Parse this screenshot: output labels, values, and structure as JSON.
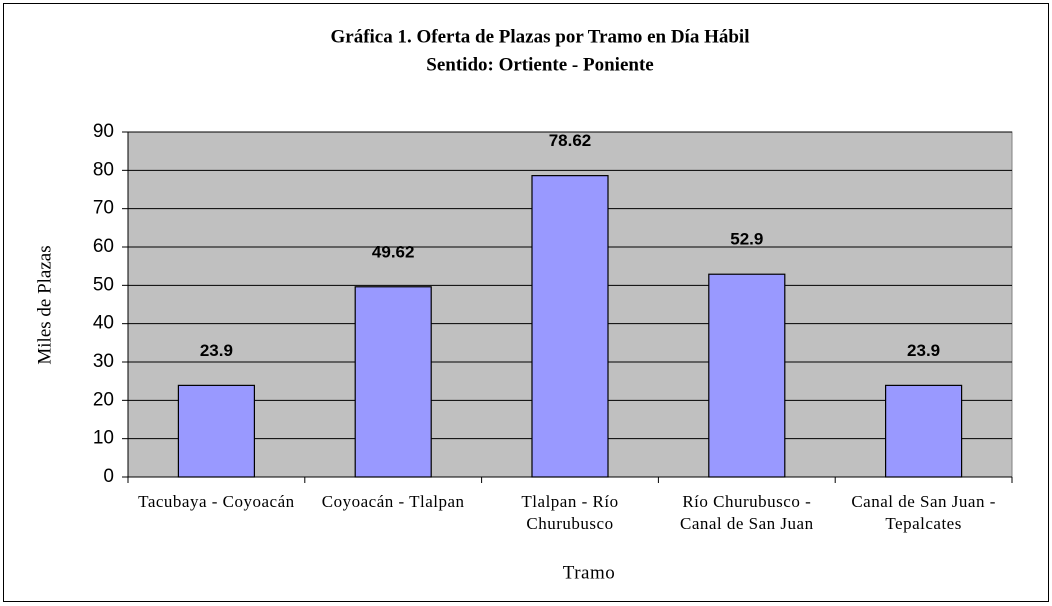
{
  "chart_data": {
    "type": "bar",
    "title": "Gráfica 1. Oferta de Plazas por Tramo en Día Hábil",
    "subtitle": "Sentido: Ortiente - Poniente",
    "x_label": "Tramo",
    "y_label": "Miles de Plazas",
    "categories": [
      "Tacubaya - Coyoacán",
      "Coyoacán - Tlalpan",
      "Tlalpan - Río Churubusco",
      "Río Churubusco - Canal de San Juan",
      "Canal de San Juan - Tepalcates"
    ],
    "values": [
      23.9,
      49.62,
      78.62,
      52.9,
      23.9
    ],
    "color": "#9999ff",
    "ylim": [
      0,
      90
    ],
    "yticks": [
      0,
      10,
      20,
      30,
      40,
      50,
      60,
      70,
      80,
      90
    ],
    "grid": true
  }
}
